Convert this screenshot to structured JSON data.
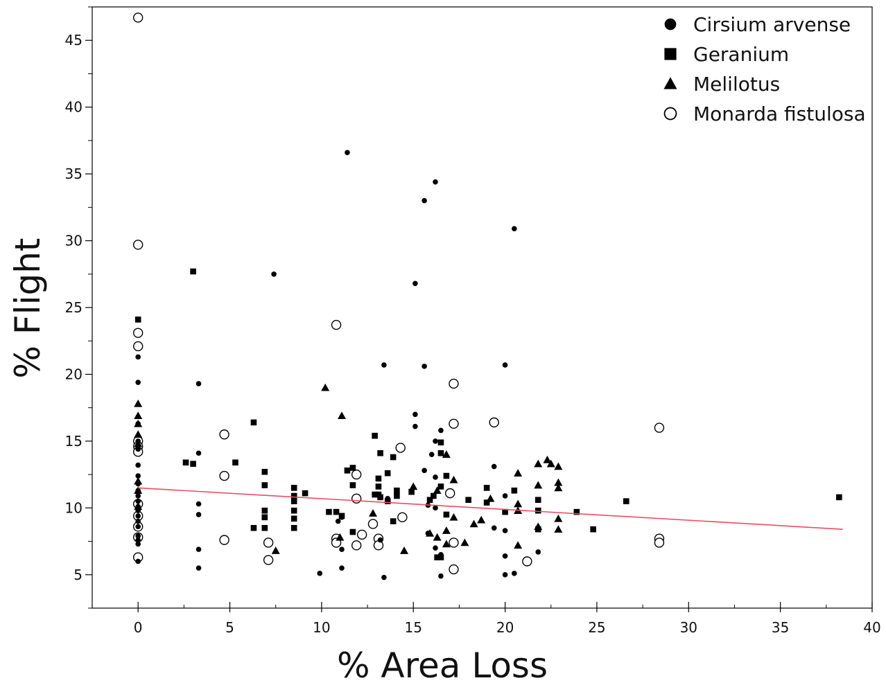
{
  "chart_data": {
    "type": "scatter",
    "title": "",
    "xlabel": "% Area Loss",
    "ylabel": "% Flight",
    "xlim": [
      -2.5,
      40
    ],
    "ylim": [
      2.5,
      47.5
    ],
    "xticks": [
      0,
      5,
      10,
      15,
      20,
      25,
      30,
      35,
      40
    ],
    "yticks": [
      5,
      10,
      15,
      20,
      25,
      30,
      35,
      40,
      45
    ],
    "grid": false,
    "legend_position": "top-right",
    "colors": {
      "points": "#000000",
      "trend_line": "#f04a5f"
    },
    "series": [
      {
        "name": "Cirsium arvense",
        "marker": "filled-circle",
        "points": [
          [
            0,
            6.0
          ],
          [
            0,
            7.3
          ],
          [
            0,
            7.6
          ],
          [
            0,
            7.9
          ],
          [
            0,
            8.6
          ],
          [
            0,
            9.0
          ],
          [
            0,
            9.4
          ],
          [
            0,
            9.8
          ],
          [
            0,
            10.1
          ],
          [
            0,
            10.5
          ],
          [
            0,
            10.9
          ],
          [
            0,
            11.3
          ],
          [
            0,
            11.8
          ],
          [
            0,
            12.4
          ],
          [
            0,
            13.2
          ],
          [
            0,
            14.4
          ],
          [
            0,
            15.0
          ],
          [
            0,
            16.3
          ],
          [
            0,
            19.4
          ],
          [
            0,
            21.3
          ],
          [
            3.3,
            19.3
          ],
          [
            3.3,
            14.1
          ],
          [
            3.3,
            10.3
          ],
          [
            3.3,
            9.5
          ],
          [
            3.3,
            6.9
          ],
          [
            3.3,
            5.5
          ],
          [
            7.4,
            27.5
          ],
          [
            9.9,
            5.1
          ],
          [
            10.9,
            9.0
          ],
          [
            11.1,
            9.3
          ],
          [
            11.1,
            6.9
          ],
          [
            11.1,
            5.5
          ],
          [
            11.4,
            36.6
          ],
          [
            13.2,
            7.6
          ],
          [
            13.4,
            20.7
          ],
          [
            13.4,
            4.8
          ],
          [
            13.6,
            10.7
          ],
          [
            15.1,
            26.8
          ],
          [
            15.1,
            17.0
          ],
          [
            15.1,
            16.1
          ],
          [
            15.6,
            33.0
          ],
          [
            15.6,
            20.6
          ],
          [
            15.6,
            12.8
          ],
          [
            15.8,
            10.2
          ],
          [
            15.8,
            8.1
          ],
          [
            16.0,
            14.0
          ],
          [
            16.2,
            34.4
          ],
          [
            16.2,
            15.0
          ],
          [
            16.2,
            12.3
          ],
          [
            16.2,
            10.0
          ],
          [
            16.2,
            7.0
          ],
          [
            16.5,
            15.8
          ],
          [
            16.5,
            6.5
          ],
          [
            16.5,
            4.9
          ],
          [
            19.4,
            13.1
          ],
          [
            19.4,
            8.5
          ],
          [
            20.0,
            20.7
          ],
          [
            20.0,
            10.9
          ],
          [
            20.0,
            6.4
          ],
          [
            20.0,
            5.0
          ],
          [
            20.0,
            8.3
          ],
          [
            20.5,
            5.1
          ],
          [
            20.5,
            30.9
          ],
          [
            21.8,
            6.7
          ]
        ]
      },
      {
        "name": "Geranium",
        "marker": "filled-square",
        "points": [
          [
            0,
            24.1
          ],
          [
            2.6,
            13.4
          ],
          [
            3.0,
            13.3
          ],
          [
            3.0,
            27.7
          ],
          [
            5.3,
            13.4
          ],
          [
            6.3,
            16.4
          ],
          [
            6.3,
            8.5
          ],
          [
            6.9,
            12.7
          ],
          [
            6.9,
            11.7
          ],
          [
            6.9,
            9.8
          ],
          [
            6.9,
            9.3
          ],
          [
            6.9,
            8.5
          ],
          [
            8.5,
            11.5
          ],
          [
            8.5,
            10.9
          ],
          [
            8.5,
            10.5
          ],
          [
            8.5,
            9.8
          ],
          [
            8.5,
            9.2
          ],
          [
            8.5,
            8.5
          ],
          [
            9.1,
            11.1
          ],
          [
            10.4,
            9.7
          ],
          [
            10.8,
            9.7
          ],
          [
            11.1,
            9.4
          ],
          [
            11.4,
            12.8
          ],
          [
            11.7,
            13.0
          ],
          [
            11.7,
            11.7
          ],
          [
            11.7,
            8.2
          ],
          [
            12.9,
            11.0
          ],
          [
            12.9,
            15.4
          ],
          [
            13.1,
            12.2
          ],
          [
            13.1,
            11.6
          ],
          [
            13.1,
            11.0
          ],
          [
            13.2,
            14.1
          ],
          [
            13.2,
            10.8
          ],
          [
            13.6,
            12.6
          ],
          [
            13.6,
            10.5
          ],
          [
            13.9,
            13.8
          ],
          [
            13.9,
            9.0
          ],
          [
            14.1,
            11.3
          ],
          [
            14.1,
            10.9
          ],
          [
            14.9,
            11.2
          ],
          [
            15.9,
            10.6
          ],
          [
            16.1,
            10.9
          ],
          [
            16.3,
            6.3
          ],
          [
            16.5,
            6.3
          ],
          [
            16.5,
            14.1
          ],
          [
            16.5,
            11.6
          ],
          [
            16.5,
            14.9
          ],
          [
            16.8,
            12.4
          ],
          [
            16.8,
            9.5
          ],
          [
            18.0,
            10.6
          ],
          [
            19.0,
            11.5
          ],
          [
            19.0,
            10.4
          ],
          [
            20.0,
            9.7
          ],
          [
            20.5,
            11.3
          ],
          [
            21.8,
            10.6
          ],
          [
            21.8,
            9.8
          ],
          [
            21.8,
            8.4
          ],
          [
            23.9,
            9.7
          ],
          [
            24.8,
            8.4
          ],
          [
            26.6,
            10.5
          ],
          [
            38.2,
            10.8
          ]
        ]
      },
      {
        "name": "Melilotus",
        "marker": "filled-triangle",
        "points": [
          [
            0,
            17.8
          ],
          [
            0,
            16.9
          ],
          [
            0,
            16.3
          ],
          [
            0,
            15.5
          ],
          [
            0,
            14.8
          ],
          [
            0,
            12.0
          ],
          [
            0,
            11.3
          ],
          [
            0,
            10.1
          ],
          [
            7.5,
            6.8
          ],
          [
            10.2,
            19.0
          ],
          [
            11.1,
            16.9
          ],
          [
            11.0,
            7.8
          ],
          [
            12.8,
            9.6
          ],
          [
            14.5,
            6.8
          ],
          [
            15.0,
            11.6
          ],
          [
            15.9,
            8.1
          ],
          [
            16.3,
            11.3
          ],
          [
            16.3,
            7.8
          ],
          [
            16.8,
            8.3
          ],
          [
            16.8,
            7.3
          ],
          [
            16.8,
            14.0
          ],
          [
            17.2,
            12.1
          ],
          [
            17.2,
            9.3
          ],
          [
            17.8,
            7.4
          ],
          [
            18.3,
            8.8
          ],
          [
            18.7,
            9.1
          ],
          [
            19.2,
            10.7
          ],
          [
            20.7,
            12.6
          ],
          [
            20.7,
            10.3
          ],
          [
            20.7,
            9.8
          ],
          [
            20.7,
            7.2
          ],
          [
            21.8,
            13.3
          ],
          [
            21.8,
            11.7
          ],
          [
            21.8,
            8.6
          ],
          [
            22.3,
            13.6
          ],
          [
            22.5,
            13.3
          ],
          [
            22.9,
            13.1
          ],
          [
            22.9,
            11.9
          ],
          [
            22.9,
            11.5
          ],
          [
            22.9,
            9.2
          ],
          [
            22.9,
            8.4
          ]
        ]
      },
      {
        "name": "Monarda fistulosa",
        "marker": "open-circle",
        "points": [
          [
            0,
            46.7
          ],
          [
            0,
            29.7
          ],
          [
            0,
            23.1
          ],
          [
            0,
            22.1
          ],
          [
            0,
            15.0
          ],
          [
            0,
            14.6
          ],
          [
            0,
            14.2
          ],
          [
            0,
            10.3
          ],
          [
            0,
            9.4
          ],
          [
            0,
            8.6
          ],
          [
            0,
            7.8
          ],
          [
            0,
            6.3
          ],
          [
            4.7,
            15.5
          ],
          [
            4.7,
            12.4
          ],
          [
            4.7,
            7.6
          ],
          [
            7.1,
            7.4
          ],
          [
            7.1,
            6.1
          ],
          [
            10.8,
            23.7
          ],
          [
            10.8,
            7.7
          ],
          [
            10.8,
            7.4
          ],
          [
            11.9,
            12.5
          ],
          [
            11.9,
            10.7
          ],
          [
            11.9,
            7.2
          ],
          [
            12.2,
            8.0
          ],
          [
            12.8,
            8.8
          ],
          [
            13.1,
            7.7
          ],
          [
            13.1,
            7.2
          ],
          [
            14.3,
            14.5
          ],
          [
            14.4,
            9.3
          ],
          [
            17.0,
            11.1
          ],
          [
            17.2,
            19.3
          ],
          [
            17.2,
            16.3
          ],
          [
            17.2,
            7.4
          ],
          [
            17.2,
            5.4
          ],
          [
            19.4,
            16.4
          ],
          [
            21.2,
            6.0
          ],
          [
            28.4,
            16.0
          ],
          [
            28.4,
            7.7
          ],
          [
            28.4,
            7.4
          ]
        ]
      }
    ],
    "trend_line": {
      "x": [
        0,
        38.4
      ],
      "y": [
        11.5,
        8.4
      ]
    }
  }
}
